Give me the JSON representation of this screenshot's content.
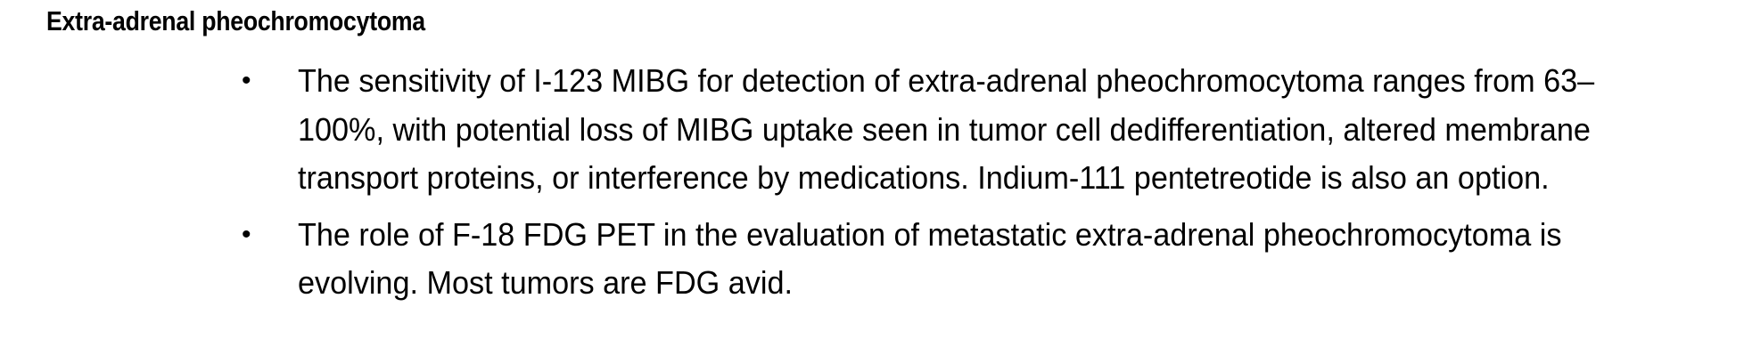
{
  "heading": "Extra-adrenal pheochromocytoma",
  "bullets": [
    {
      "marker": "•",
      "text": "The sensitivity of I-123 MIBG for detection of extra-adrenal pheochromocytoma ranges from 63–100%, with potential loss of MIBG uptake seen in tumor cell dedifferentiation, altered membrane transport proteins, or interference by medications. Indium-111 pentetreotide is also an option."
    },
    {
      "marker": "•",
      "text": "The role of F-18 FDG PET in the evaluation of metastatic extra-adrenal pheochromocytoma is evolving. Most tumors are FDG avid."
    }
  ]
}
